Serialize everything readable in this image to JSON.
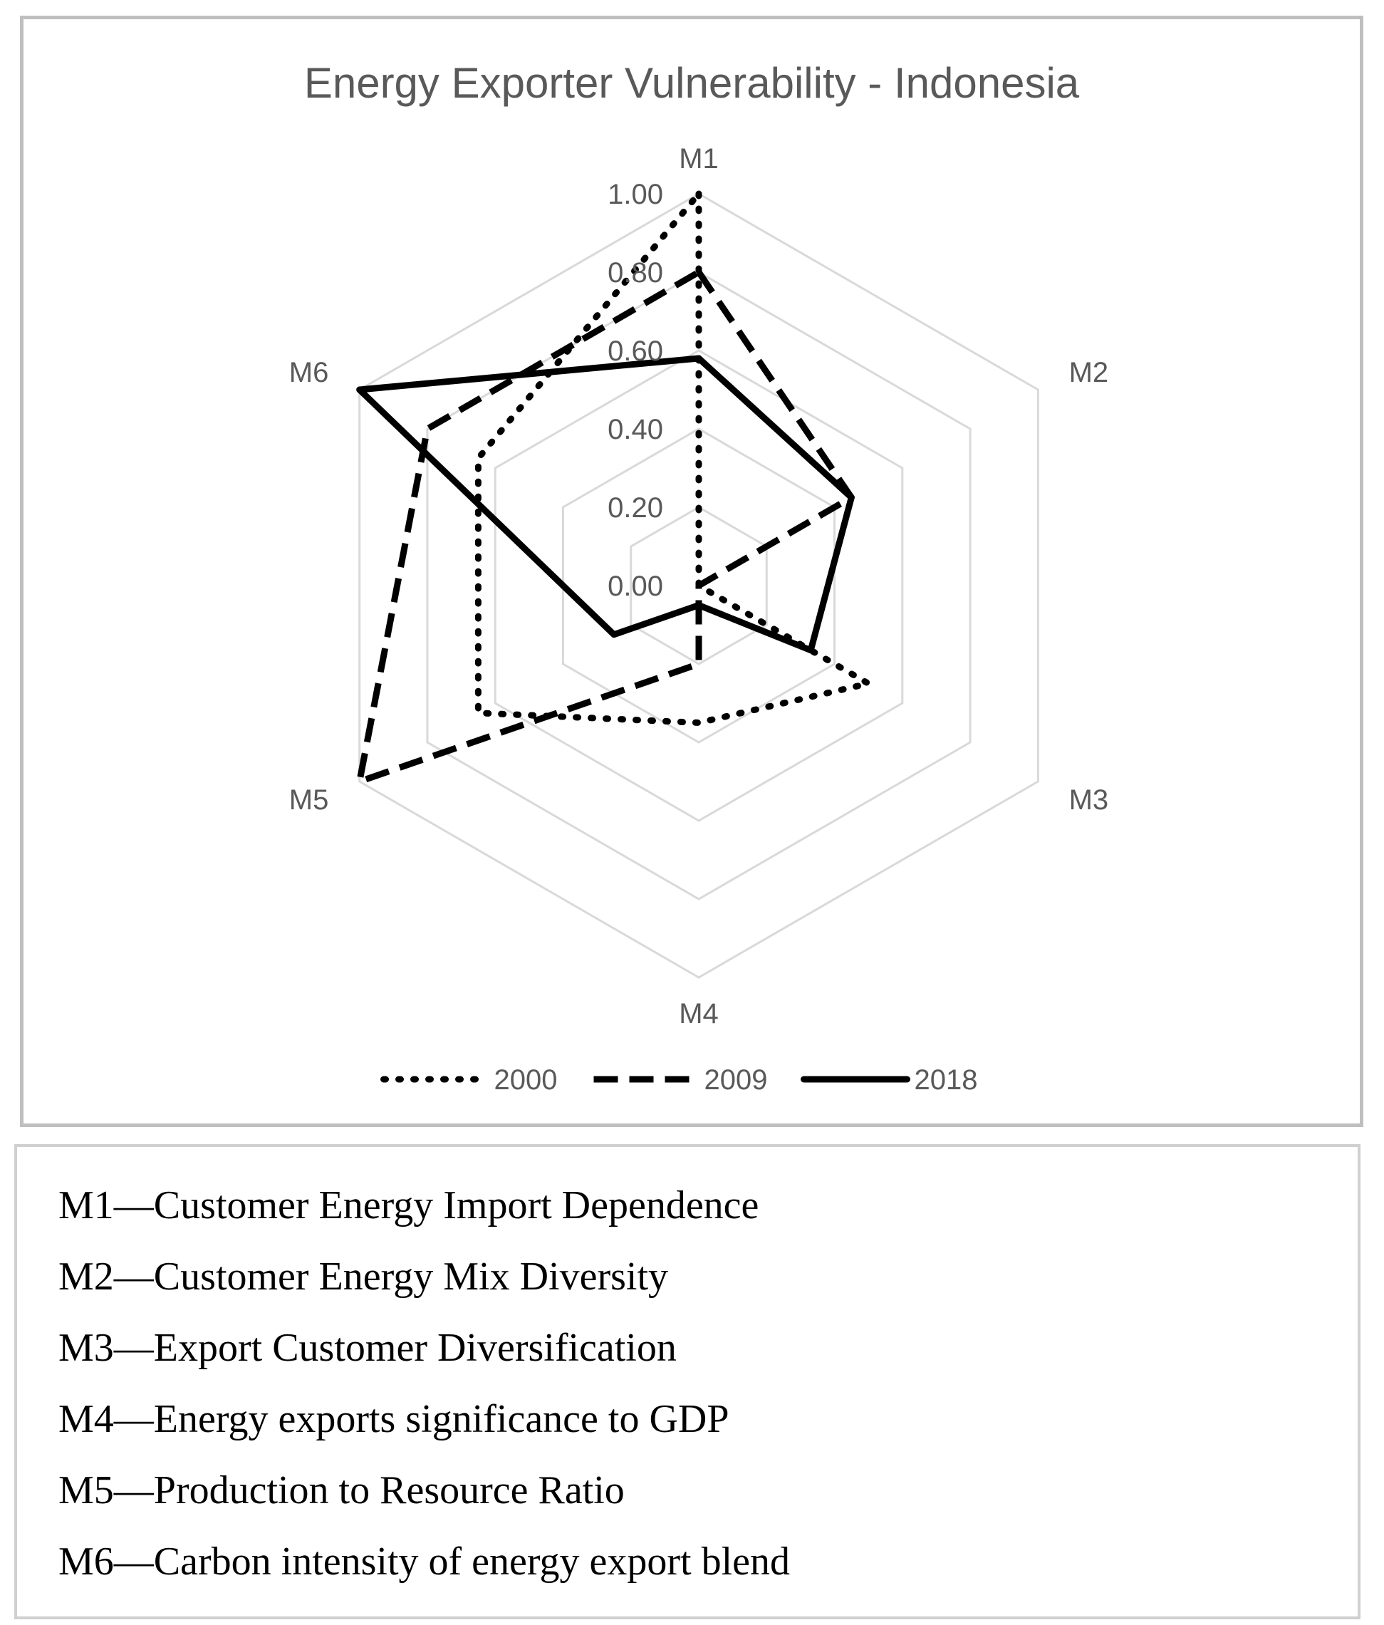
{
  "chart_data": {
    "type": "radar",
    "title": "Energy Exporter Vulnerability - Indonesia",
    "axes": [
      "M1",
      "M2",
      "M3",
      "M4",
      "M5",
      "M6"
    ],
    "rlim": [
      0,
      1
    ],
    "ticks": [
      0.0,
      0.2,
      0.4,
      0.6,
      0.8,
      1.0
    ],
    "tick_labels": [
      "0.00",
      "0.20",
      "0.40",
      "0.60",
      "0.80",
      "1.00"
    ],
    "grid": true,
    "legend_position": "bottom",
    "series": [
      {
        "name": "2000",
        "style": "dotted",
        "values": [
          1.0,
          0.0,
          0.5,
          0.35,
          0.65,
          0.65
        ]
      },
      {
        "name": "2009",
        "style": "dashed",
        "values": [
          0.8,
          0.45,
          0.0,
          0.2,
          1.0,
          0.8
        ]
      },
      {
        "name": "2018",
        "style": "solid",
        "values": [
          0.58,
          0.45,
          0.33,
          0.05,
          0.25,
          1.0
        ]
      }
    ]
  },
  "definitions": [
    "M1—Customer Energy Import Dependence",
    "M2—Customer Energy Mix Diversity",
    "M3—Export Customer Diversification",
    "M4—Energy exports significance to GDP",
    "M5—Production to Resource Ratio",
    "M6—Carbon intensity of energy export blend"
  ],
  "colors": {
    "grid": "#d9d9d9",
    "series": "#000000",
    "text": "#595959",
    "border": "#bfbfbf"
  }
}
